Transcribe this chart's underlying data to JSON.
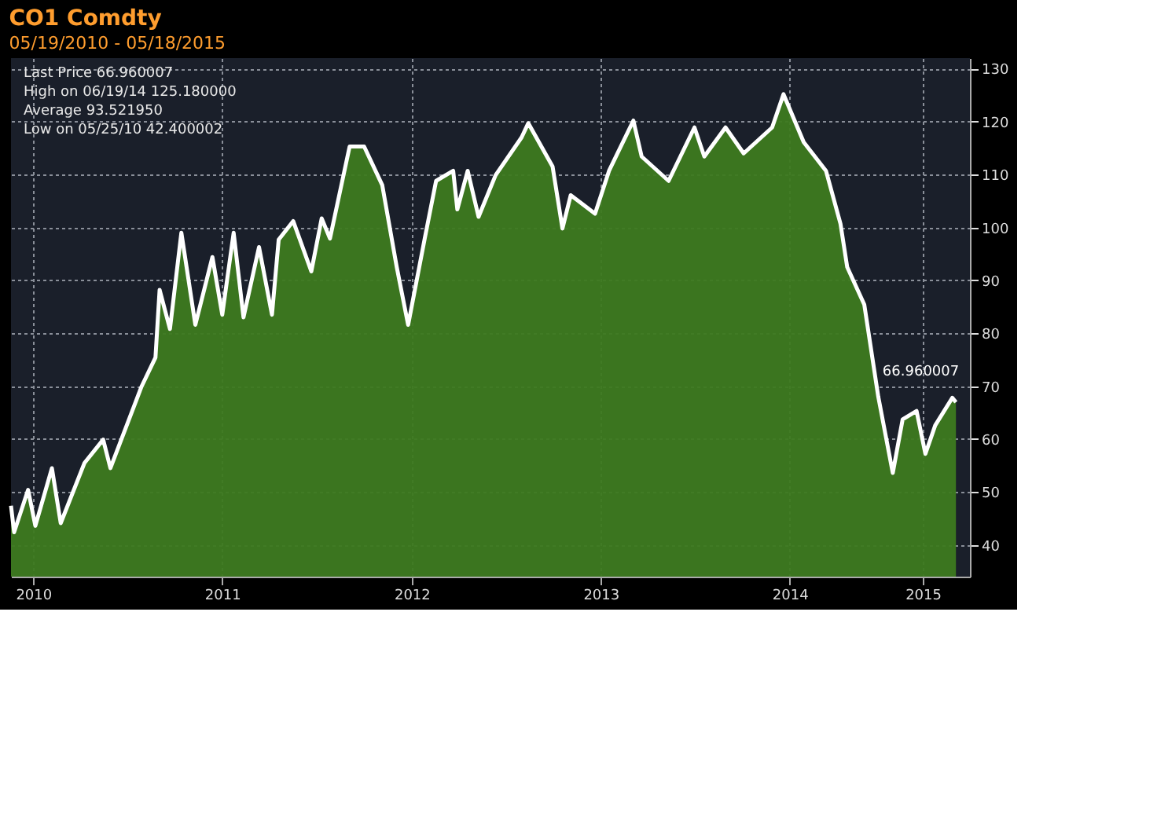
{
  "chart_data": {
    "type": "area",
    "title": "CO1 Comdty",
    "subtitle": "05/19/2010 - 05/18/2015",
    "x": [
      "2010-05-19",
      "2010-05-25",
      "2010-06-21",
      "2010-07-05",
      "2010-08-06",
      "2010-08-23",
      "2010-10-08",
      "2010-11-13",
      "2010-11-27",
      "2011-01-26",
      "2011-02-22",
      "2011-03-02",
      "2011-03-22",
      "2011-04-13",
      "2011-05-10",
      "2011-06-12",
      "2011-07-01",
      "2011-07-23",
      "2011-08-11",
      "2011-09-10",
      "2011-10-05",
      "2011-10-18",
      "2011-11-15",
      "2011-12-20",
      "2012-01-09",
      "2012-01-25",
      "2012-03-03",
      "2012-03-31",
      "2012-05-05",
      "2012-06-02",
      "2012-06-24",
      "2012-07-26",
      "2012-08-17",
      "2012-09-19",
      "2012-09-27",
      "2012-10-17",
      "2012-11-07",
      "2012-12-10",
      "2013-01-29",
      "2013-02-11",
      "2013-03-30",
      "2013-04-18",
      "2013-05-04",
      "2013-06-20",
      "2013-07-17",
      "2013-09-02",
      "2013-09-18",
      "2013-11-09",
      "2013-12-29",
      "2014-01-17",
      "2014-02-27",
      "2014-04-03",
      "2014-05-28",
      "2014-06-19",
      "2014-07-28",
      "2014-09-09",
      "2014-10-07",
      "2014-10-20",
      "2014-11-22",
      "2014-12-19",
      "2015-01-16",
      "2015-02-04",
      "2015-03-03",
      "2015-03-20",
      "2015-04-08",
      "2015-05-11",
      "2015-05-18"
    ],
    "series": [
      {
        "color": "#3d7a1f",
        "values": [
          47.4,
          42.4,
          50.4,
          43.6,
          54.5,
          44.1,
          55.5,
          59.9,
          54.5,
          69.9,
          75.4,
          88.2,
          80.8,
          99.0,
          81.6,
          94.4,
          83.5,
          99.0,
          83.0,
          96.3,
          83.5,
          97.7,
          101.2,
          91.7,
          101.7,
          97.9,
          115.3,
          115.3,
          108.0,
          92.5,
          81.6,
          97.9,
          108.8,
          110.7,
          103.4,
          110.7,
          102.0,
          109.9,
          117.0,
          119.7,
          111.5,
          99.8,
          106.1,
          102.6,
          110.7,
          120.2,
          113.4,
          108.8,
          118.9,
          113.4,
          118.9,
          114.0,
          118.9,
          125.18,
          116.1,
          110.7,
          100.7,
          92.5,
          85.4,
          68.0,
          53.6,
          63.7,
          65.3,
          57.2,
          62.6,
          67.8,
          66.96
        ]
      }
    ],
    "xlim": [
      "2010-05-19",
      "2015-06-14"
    ],
    "xticks": [
      {
        "value": "2010-07-01",
        "label": "2010"
      },
      {
        "value": "2011-07-01",
        "label": "2011"
      },
      {
        "value": "2012-07-01",
        "label": "2012"
      },
      {
        "value": "2013-07-01",
        "label": "2013"
      },
      {
        "value": "2014-07-01",
        "label": "2014"
      },
      {
        "value": "2015-03-15",
        "label": "2015"
      }
    ],
    "ylim": [
      34,
      132
    ],
    "yticks": [
      40,
      50,
      60,
      70,
      80,
      90,
      100,
      110,
      120,
      130
    ],
    "grid": true,
    "annotations": [
      "Last Price 66.960007",
      "High on 06/19/14 125.180000",
      "Average 93.521950",
      "Low on 05/25/10 42.400002",
      {
        "text": "66.960007",
        "x": "2015-05-18",
        "y": 66.96
      }
    ]
  }
}
